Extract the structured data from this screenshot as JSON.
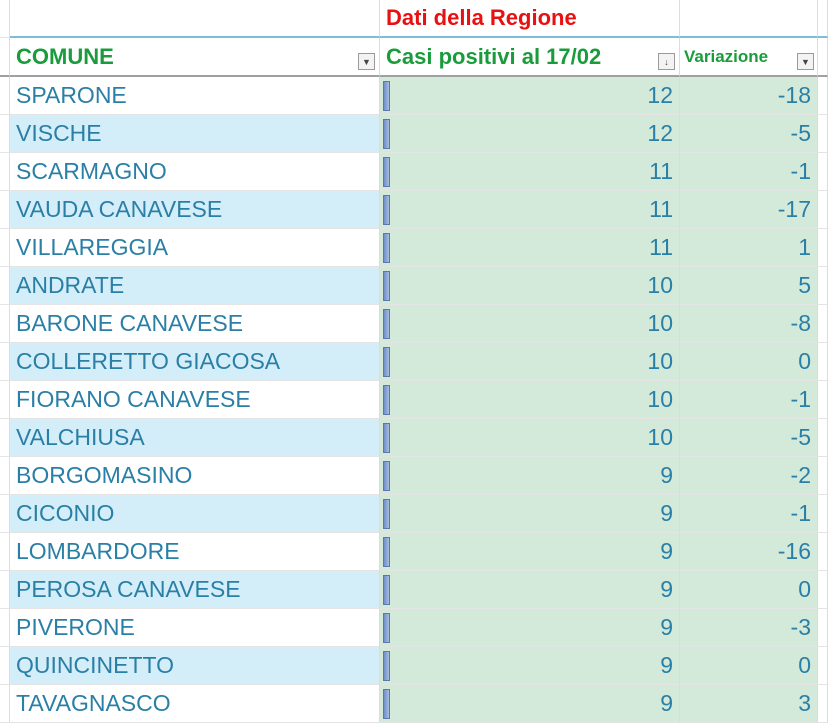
{
  "header": {
    "group_title": "Dati della Regione",
    "col_comune": "COMUNE",
    "col_casi": "Casi positivi al 17/02",
    "col_variazione": "Variazione"
  },
  "colors": {
    "title_red": "#e81010",
    "header_green": "#1a9c3c",
    "text_blue": "#2a7fa6",
    "band_blue": "#d4eef9",
    "fill_green": "#d3eadb"
  },
  "rows": [
    {
      "comune": "SPARONE",
      "casi": 12,
      "variazione": -18
    },
    {
      "comune": "VISCHE",
      "casi": 12,
      "variazione": -5
    },
    {
      "comune": "SCARMAGNO",
      "casi": 11,
      "variazione": -1
    },
    {
      "comune": "VAUDA CANAVESE",
      "casi": 11,
      "variazione": -17
    },
    {
      "comune": "VILLAREGGIA",
      "casi": 11,
      "variazione": 1
    },
    {
      "comune": "ANDRATE",
      "casi": 10,
      "variazione": 5
    },
    {
      "comune": "BARONE CANAVESE",
      "casi": 10,
      "variazione": -8
    },
    {
      "comune": "COLLERETTO GIACOSA",
      "casi": 10,
      "variazione": 0
    },
    {
      "comune": "FIORANO CANAVESE",
      "casi": 10,
      "variazione": -1
    },
    {
      "comune": "VALCHIUSA",
      "casi": 10,
      "variazione": -5
    },
    {
      "comune": "BORGOMASINO",
      "casi": 9,
      "variazione": -2
    },
    {
      "comune": "CICONIO",
      "casi": 9,
      "variazione": -1
    },
    {
      "comune": "LOMBARDORE",
      "casi": 9,
      "variazione": -16
    },
    {
      "comune": "PEROSA CANAVESE",
      "casi": 9,
      "variazione": 0
    },
    {
      "comune": "PIVERONE",
      "casi": 9,
      "variazione": -3
    },
    {
      "comune": "QUINCINETTO",
      "casi": 9,
      "variazione": 0
    },
    {
      "comune": "TAVAGNASCO",
      "casi": 9,
      "variazione": 3
    }
  ]
}
